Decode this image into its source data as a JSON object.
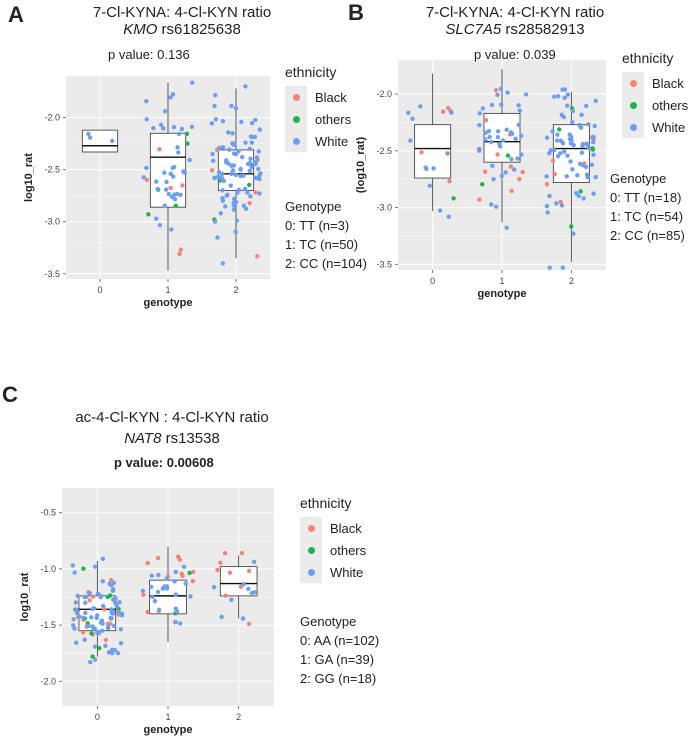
{
  "colors": {
    "Black": "#f4837a",
    "others": "#1fb14a",
    "White": "#6f9ef0",
    "panel_bg": "#ebebeb"
  },
  "panels": [
    {
      "label": "A",
      "title_line1": "7-Cl-KYNA: 4-Cl-KYN ratio",
      "gene": "KMO",
      "snp": "rs61825638",
      "p_value_text": "p value: 0.136",
      "legend_title": "ethnicity",
      "legend_items": [
        "Black",
        "others",
        "White"
      ],
      "genotype_title": "Genotype",
      "genotype_lines": [
        "0: TT (n=3)",
        "1: TC (n=50)",
        "2: CC (n=104)"
      ]
    },
    {
      "label": "B",
      "title_line1": "7-Cl-KYNA: 4-Cl-KYN ratio",
      "gene": "SLC7A5",
      "snp": "rs28582913",
      "p_value_text": "p value: 0.039",
      "legend_title": "ethnicity",
      "legend_items": [
        "Black",
        "others",
        "White"
      ],
      "genotype_title": "Genotype",
      "genotype_lines": [
        "0: TT (n=18)",
        "1: TC (n=54)",
        "2: CC (n=85)"
      ]
    },
    {
      "label": "C",
      "title_line1": "ac-4-Cl-KYN : 4-Cl-KYN ratio",
      "gene": "NAT8",
      "snp": "rs13538",
      "p_value_text": "p value: 0.00608",
      "legend_title": "ethnicity",
      "legend_items": [
        "Black",
        "others",
        "White"
      ],
      "genotype_title": "Genotype",
      "genotype_lines": [
        "0: AA (n=102)",
        "1: GA (n=39)",
        "2: GG (n=18)"
      ]
    }
  ],
  "chart_data": [
    {
      "type": "box",
      "panel": "A",
      "xlabel": "genotype",
      "ylabel": "log10_rat",
      "categories": [
        "0",
        "1",
        "2"
      ],
      "ylim": [
        -3.55,
        -1.6
      ],
      "yticks": [
        -2.0,
        -2.5,
        -3.0,
        -3.5
      ],
      "boxes": [
        {
          "cat": "0",
          "q1": -2.33,
          "median": -2.27,
          "q3": -2.12,
          "wlow": -2.33,
          "whigh": -2.12,
          "visible": true
        },
        {
          "cat": "1",
          "q1": -2.86,
          "median": -2.38,
          "q3": -2.15,
          "wlow": -3.47,
          "whigh": -1.66,
          "visible": true
        },
        {
          "cat": "2",
          "q1": -2.7,
          "median": -2.54,
          "q3": -2.31,
          "wlow": -3.35,
          "whigh": -1.72,
          "visible": true
        }
      ],
      "points": {
        "0": {
          "n": 3,
          "mean": -2.25,
          "sd": 0.12,
          "black": 0,
          "others": 0
        },
        "1": {
          "n": 50,
          "mean": -2.5,
          "sd": 0.36,
          "black": 6,
          "others": 5
        },
        "2": {
          "n": 104,
          "mean": -2.52,
          "sd": 0.3,
          "black": 6,
          "others": 4
        }
      }
    },
    {
      "type": "box",
      "panel": "B",
      "xlabel": "genotype",
      "ylabel": "(log10_rat)",
      "categories": [
        "0",
        "1",
        "2"
      ],
      "ylim": [
        -3.55,
        -1.7
      ],
      "yticks": [
        -2.0,
        -2.5,
        -3.0,
        -3.5
      ],
      "boxes": [
        {
          "cat": "0",
          "q1": -2.74,
          "median": -2.48,
          "q3": -2.27,
          "wlow": -3.03,
          "whigh": -1.82,
          "visible": true
        },
        {
          "cat": "1",
          "q1": -2.6,
          "median": -2.42,
          "q3": -2.17,
          "wlow": -3.13,
          "whigh": -1.78,
          "visible": true
        },
        {
          "cat": "2",
          "q1": -2.78,
          "median": -2.48,
          "q3": -2.27,
          "wlow": -3.48,
          "whigh": -1.98,
          "visible": true
        }
      ],
      "points": {
        "0": {
          "n": 18,
          "mean": -2.5,
          "sd": 0.35,
          "black": 5,
          "others": 1
        },
        "1": {
          "n": 54,
          "mean": -2.42,
          "sd": 0.3,
          "black": 10,
          "others": 2
        },
        "2": {
          "n": 85,
          "mean": -2.5,
          "sd": 0.33,
          "black": 7,
          "others": 6
        }
      }
    },
    {
      "type": "box",
      "panel": "C",
      "xlabel": "genotype",
      "ylabel": "log10_rat",
      "categories": [
        "0",
        "1",
        "2"
      ],
      "ylim": [
        -2.22,
        -0.28
      ],
      "yticks": [
        -0.5,
        -1.0,
        -1.5,
        -2.0
      ],
      "boxes": [
        {
          "cat": "0",
          "q1": -1.55,
          "median": -1.36,
          "q3": -1.24,
          "wlow": -1.78,
          "whigh": -0.93,
          "visible": true
        },
        {
          "cat": "1",
          "q1": -1.4,
          "median": -1.24,
          "q3": -1.1,
          "wlow": -1.65,
          "whigh": -0.8,
          "visible": true
        },
        {
          "cat": "2",
          "q1": -1.24,
          "median": -1.13,
          "q3": -0.98,
          "wlow": -1.44,
          "whigh": -0.88,
          "visible": true
        }
      ],
      "points": {
        "0": {
          "n": 102,
          "mean": -1.38,
          "sd": 0.22,
          "black": 16,
          "others": 12
        },
        "1": {
          "n": 39,
          "mean": -1.25,
          "sd": 0.2,
          "black": 14,
          "others": 2
        },
        "2": {
          "n": 18,
          "mean": -1.12,
          "sd": 0.2,
          "black": 9,
          "others": 0
        }
      }
    }
  ]
}
